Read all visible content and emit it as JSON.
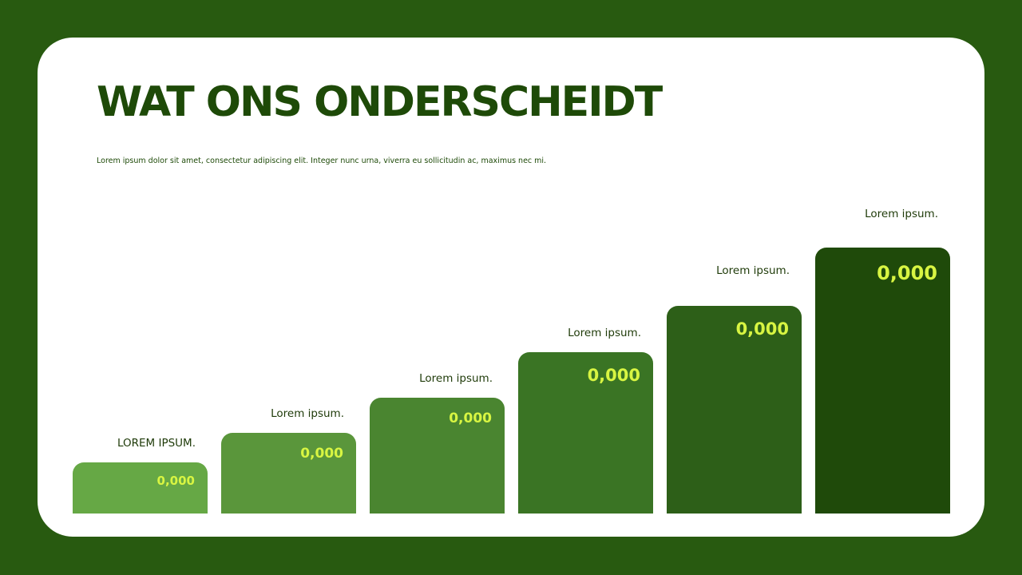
{
  "slide": {
    "title": "WAT ONS ONDERSCHEIDT",
    "subtitle": "Lorem ipsum dolor sit amet, consectetur adipiscing elit. Integer nunc urna, viverra eu sollicitudin ac, maximus nec mi."
  },
  "steps": [
    {
      "label": "LOREM IPSUM.",
      "value": "0,000",
      "color": "#66a845"
    },
    {
      "label": "Lorem ipsum.",
      "value": "0,000",
      "color": "#5a963b"
    },
    {
      "label": "Lorem ipsum.",
      "value": "0,000",
      "color": "#4a8530"
    },
    {
      "label": "Lorem ipsum.",
      "value": "0,000",
      "color": "#3a7424"
    },
    {
      "label": "Lorem ipsum.",
      "value": "0,000",
      "color": "#2d5f18"
    },
    {
      "label": "Lorem ipsum.",
      "value": "0,000",
      "color": "#1f4a0a"
    }
  ],
  "colors": {
    "background": "#285a10",
    "title": "#1e4a08",
    "value_text": "#d8f542"
  }
}
